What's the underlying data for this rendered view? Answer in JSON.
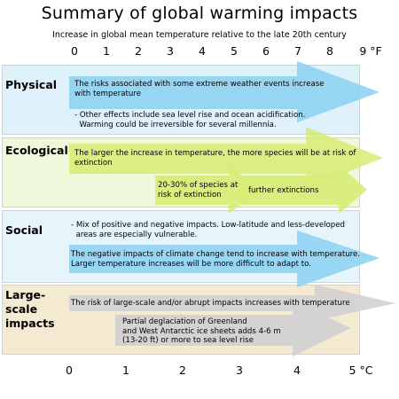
{
  "title": "Summary of global warming impacts",
  "subtitle": "Increase in global mean temperature relative to the late 20th century",
  "fahrenheit_ticks": [
    "0",
    "1",
    "2",
    "3",
    "4",
    "5",
    "6",
    "7",
    "8",
    "9 °F"
  ],
  "celsius_ticks": [
    "0",
    "1",
    "2",
    "3",
    "4",
    "5 °C"
  ],
  "colors": {
    "physical_bg": "#dff1fb",
    "ecological_bg": "#eef8da",
    "social_bg": "#e6f4fb",
    "large_scale_bg": "#f4ead2",
    "blue_arrow": "#8fd3f2",
    "green_arrow": "#d6ec74",
    "gray_arrow": "#d2d2d2"
  },
  "sections": {
    "physical": {
      "label": "Physical",
      "items": [
        "The risks associated with some extreme weather events increase\nwith temperature",
        "- Other effects include sea level rise and ocean acidification.\n  Warming could be irreversible for several millennia."
      ]
    },
    "ecological": {
      "label": "Ecological",
      "items": [
        "The larger the increase in temperature, the more species will be at risk of\nextinction",
        "20-30% of species at\nrisk of extinction",
        "further extinctions"
      ]
    },
    "social": {
      "label": "Social",
      "items": [
        "- Mix of positive and negative impacts. Low-latitude and less-developed\n  areas are especially vulnerable.",
        "The negative impacts of climate change tend to increase with temperature.\nLarger temperature increases will be more difficult to adapt to."
      ]
    },
    "large_scale": {
      "label": "Large-\nscale\nimpacts",
      "items": [
        "The risk of large-scale and/or abrupt impacts increases with temperature",
        "Partial deglaciation of Greenland\nand West Antarctic ice sheets adds 4-6 m\n(13-20 ft) or more to sea level rise"
      ]
    }
  }
}
